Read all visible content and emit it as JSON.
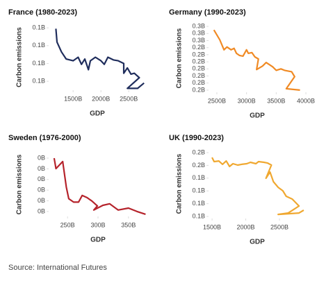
{
  "chart_data": [
    {
      "type": "line",
      "title": "France (1980-2023)",
      "xlabel": "GDP",
      "ylabel": "Carbon emissions",
      "color": "#1f2d5c",
      "x": [
        1190,
        1210,
        1290,
        1375,
        1500,
        1590,
        1650,
        1710,
        1775,
        1810,
        1900,
        2000,
        2060,
        2125,
        2225,
        2310,
        2410,
        2410,
        2475,
        2540,
        2600,
        2690,
        2475,
        2660,
        2775
      ],
      "values": [
        0.139,
        0.124,
        0.113,
        0.105,
        0.103,
        0.107,
        0.099,
        0.105,
        0.093,
        0.103,
        0.107,
        0.103,
        0.099,
        0.107,
        0.104,
        0.103,
        0.1,
        0.089,
        0.095,
        0.088,
        0.089,
        0.084,
        0.072,
        0.072,
        0.078
      ],
      "xlim": [
        1060,
        2810
      ],
      "ylim": [
        0.07,
        0.144
      ],
      "xticks": [
        {
          "value": 1500,
          "label": "1500B"
        },
        {
          "value": 2000,
          "label": "2000B"
        },
        {
          "value": 2500,
          "label": "2500B"
        }
      ],
      "yticks": [
        {
          "value": 0.14,
          "label": "0.1B"
        },
        {
          "value": 0.12,
          "label": "0.1B"
        },
        {
          "value": 0.1,
          "label": "0.1B"
        },
        {
          "value": 0.08,
          "label": "0.1B"
        }
      ]
    },
    {
      "type": "line",
      "title": "Germany (1990-2023)",
      "xlabel": "GDP",
      "ylabel": "Carbon emissions",
      "color": "#f08a24",
      "x": [
        2450,
        2550,
        2620,
        2670,
        2740,
        2790,
        2830,
        2880,
        2940,
        3000,
        3030,
        3090,
        3140,
        3200,
        3170,
        3270,
        3330,
        3440,
        3500,
        3580,
        3640,
        3760,
        3810,
        3670,
        3900
      ],
      "values": [
        0.27,
        0.256,
        0.242,
        0.246,
        0.242,
        0.244,
        0.237,
        0.234,
        0.233,
        0.242,
        0.237,
        0.238,
        0.232,
        0.229,
        0.214,
        0.219,
        0.224,
        0.218,
        0.213,
        0.215,
        0.213,
        0.211,
        0.204,
        0.187,
        0.185
      ],
      "xlim": [
        2360,
        4000
      ],
      "ylim": [
        0.182,
        0.278
      ],
      "xticks": [
        {
          "value": 2500,
          "label": "2500B"
        },
        {
          "value": 3000,
          "label": "3000B"
        },
        {
          "value": 3500,
          "label": "3500B"
        },
        {
          "value": 4000,
          "label": "4000B"
        }
      ],
      "yticks": [
        {
          "value": 0.275,
          "label": "0.3B"
        },
        {
          "value": 0.265,
          "label": "0.3B"
        },
        {
          "value": 0.255,
          "label": "0.3B"
        },
        {
          "value": 0.245,
          "label": "0.2B"
        },
        {
          "value": 0.235,
          "label": "0.2B"
        },
        {
          "value": 0.225,
          "label": "0.2B"
        },
        {
          "value": 0.215,
          "label": "0.2B"
        },
        {
          "value": 0.205,
          "label": "0.2B"
        },
        {
          "value": 0.195,
          "label": "0.2B"
        },
        {
          "value": 0.185,
          "label": "0.2B"
        }
      ]
    },
    {
      "type": "line",
      "title": "Sweden (1976-2000)",
      "xlabel": "GDP",
      "ylabel": "Carbon emissions",
      "color": "#b5232b",
      "x": [
        228,
        231,
        242,
        248,
        252,
        260,
        268,
        274,
        282,
        290,
        299,
        293,
        308,
        319,
        333,
        350,
        364,
        378
      ],
      "values": [
        0.045,
        0.0401,
        0.0434,
        0.0314,
        0.026,
        0.0244,
        0.0244,
        0.0275,
        0.0265,
        0.0249,
        0.0226,
        0.0207,
        0.0229,
        0.0236,
        0.0207,
        0.0216,
        0.02,
        0.0187
      ],
      "xlim": [
        219,
        381
      ],
      "ylim": [
        0.0177,
        0.0476
      ],
      "xticks": [
        {
          "value": 250,
          "label": "250B"
        },
        {
          "value": 300,
          "label": "300B"
        },
        {
          "value": 350,
          "label": "350B"
        }
      ],
      "yticks": [
        {
          "value": 0.045,
          "label": "0B"
        },
        {
          "value": 0.04,
          "label": "0B"
        },
        {
          "value": 0.035,
          "label": "0B"
        },
        {
          "value": 0.03,
          "label": "0B"
        },
        {
          "value": 0.025,
          "label": "0B"
        },
        {
          "value": 0.02,
          "label": "0B"
        }
      ]
    },
    {
      "type": "line",
      "title": "UK (1990-2023)",
      "xlabel": "GDP",
      "ylabel": "Carbon emissions",
      "color": "#f0a830",
      "x": [
        1500,
        1530,
        1600,
        1655,
        1710,
        1760,
        1810,
        1880,
        1940,
        2015,
        2070,
        2150,
        2190,
        2270,
        2325,
        2380,
        2300,
        2360,
        2410,
        2480,
        2550,
        2600,
        2690,
        2790,
        2630,
        2480,
        2790,
        2860
      ],
      "values": [
        0.1612,
        0.1579,
        0.1584,
        0.1558,
        0.1584,
        0.1541,
        0.1563,
        0.1552,
        0.1558,
        0.1563,
        0.1574,
        0.1563,
        0.1579,
        0.1574,
        0.1568,
        0.1552,
        0.1449,
        0.1498,
        0.1422,
        0.1378,
        0.1351,
        0.1308,
        0.1286,
        0.1232,
        0.1177,
        0.1166,
        0.1177,
        0.1199
      ],
      "xlim": [
        1448,
        2892
      ],
      "ylim": [
        0.1134,
        0.1677
      ],
      "xticks": [
        {
          "value": 1500,
          "label": "1500B"
        },
        {
          "value": 2000,
          "label": "2000B"
        },
        {
          "value": 2500,
          "label": "2500B"
        }
      ],
      "yticks": [
        {
          "value": 0.165,
          "label": "0.2B"
        },
        {
          "value": 0.155,
          "label": "0.2B"
        },
        {
          "value": 0.145,
          "label": "0.1B"
        },
        {
          "value": 0.135,
          "label": "0.1B"
        },
        {
          "value": 0.125,
          "label": "0.1B"
        },
        {
          "value": 0.115,
          "label": "0.1B"
        }
      ]
    }
  ],
  "source": "Source: International Futures"
}
